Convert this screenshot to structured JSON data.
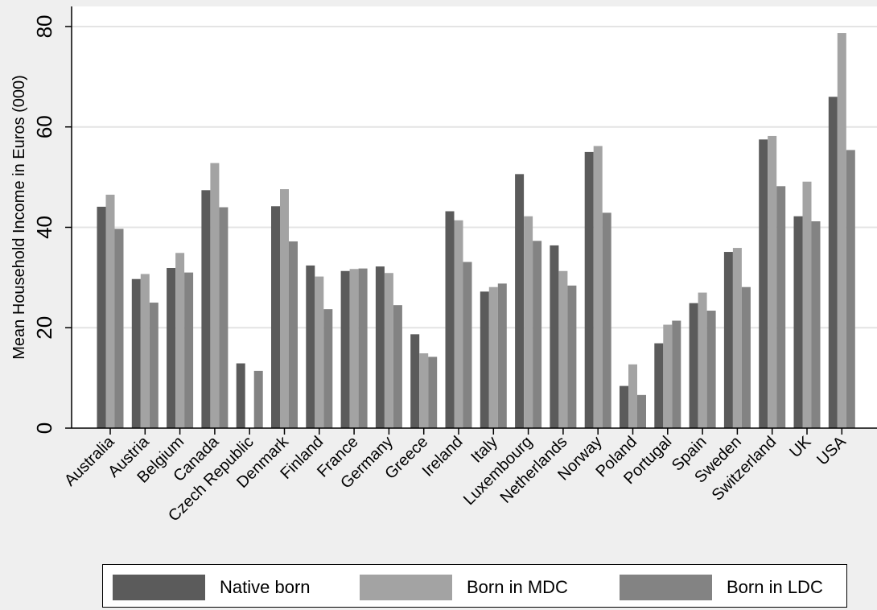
{
  "chart_data": {
    "type": "bar",
    "ylabel": "Mean Household Income in Euros (000)",
    "ylim": [
      0,
      84
    ],
    "yticks": [
      0,
      20,
      40,
      60,
      80
    ],
    "grid": true,
    "legend_position": "bottom",
    "categories": [
      "Australia",
      "Austria",
      "Belgium",
      "Canada",
      "Czech Republic",
      "Denmark",
      "Finland",
      "France",
      "Germany",
      "Greece",
      "Ireland",
      "Italy",
      "Luxembourg",
      "Netherlands",
      "Norway",
      "Poland",
      "Portugal",
      "Spain",
      "Sweden",
      "Switzerland",
      "UK",
      "USA"
    ],
    "series": [
      {
        "name": "Native born",
        "color": "#5b5b5b",
        "values": [
          44.1,
          29.7,
          31.9,
          47.4,
          12.9,
          44.2,
          32.4,
          31.3,
          32.2,
          18.7,
          43.2,
          27.2,
          50.6,
          36.4,
          55.0,
          8.4,
          16.9,
          24.9,
          35.1,
          57.5,
          42.2,
          66.0
        ]
      },
      {
        "name": "Born in MDC",
        "color": "#a3a3a3",
        "values": [
          46.5,
          30.7,
          34.9,
          52.8,
          null,
          47.6,
          30.2,
          31.7,
          30.9,
          14.9,
          41.4,
          28.1,
          42.2,
          31.3,
          56.2,
          12.7,
          20.6,
          27.0,
          35.9,
          58.2,
          49.1,
          78.7
        ]
      },
      {
        "name": "Born in LDC",
        "color": "#838383",
        "values": [
          39.7,
          25.0,
          31.0,
          44.0,
          11.4,
          37.2,
          23.7,
          31.8,
          24.5,
          14.2,
          33.1,
          28.8,
          37.3,
          28.4,
          42.9,
          6.6,
          21.4,
          23.4,
          28.1,
          48.2,
          41.2,
          55.4
        ]
      }
    ]
  }
}
